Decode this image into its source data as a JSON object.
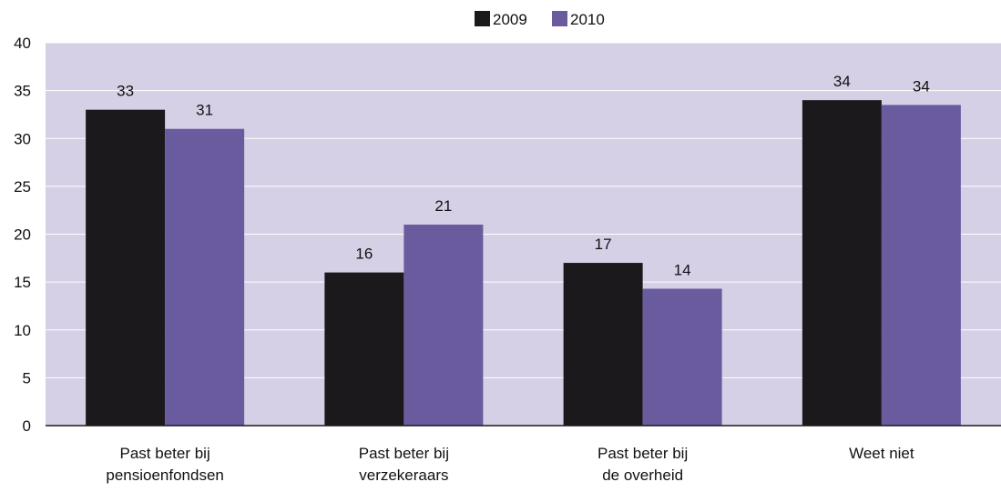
{
  "chart_data": {
    "type": "bar",
    "categories": [
      [
        "Past beter bij",
        "pensioenfondsen"
      ],
      [
        "Past beter bij",
        "verzekeraars"
      ],
      [
        "Past beter bij",
        "de overheid"
      ],
      [
        "Weet niet"
      ]
    ],
    "series": [
      {
        "name": "2009",
        "color": "#1c191c",
        "values": [
          33,
          16,
          17,
          34
        ],
        "labels": [
          "33",
          "16",
          "17",
          "34"
        ]
      },
      {
        "name": "2010",
        "color": "#6a5a9e",
        "values": [
          31,
          21,
          14.3,
          33.5
        ],
        "labels": [
          "31",
          "21",
          "14",
          "34"
        ]
      }
    ],
    "ylim": [
      0,
      40
    ],
    "yticks": [
      0,
      5,
      10,
      15,
      20,
      25,
      30,
      35,
      40
    ],
    "grid": true,
    "plot_background": "#d5d0e6",
    "gridline_color": "#ffffff",
    "legend_position": "top-center"
  }
}
